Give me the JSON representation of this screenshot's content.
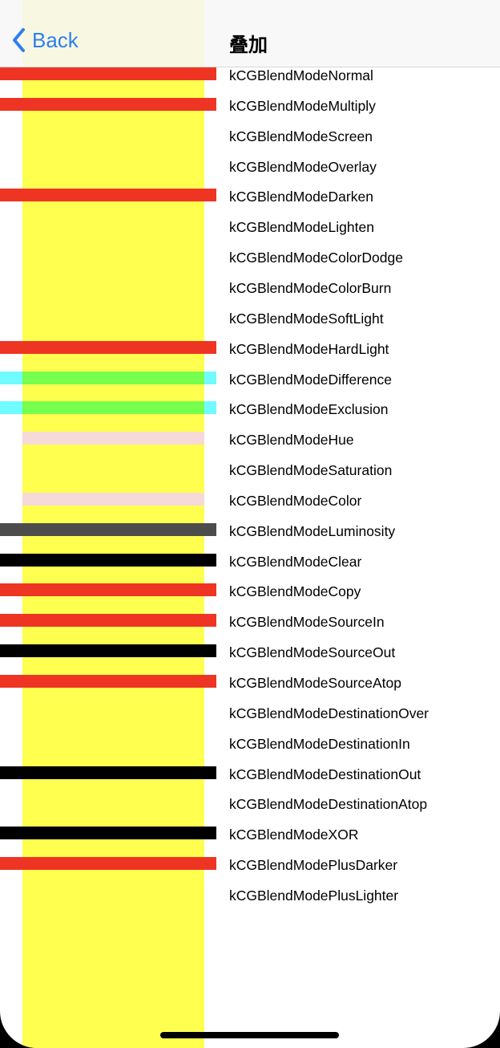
{
  "nav": {
    "back_label": "Back",
    "title": "叠加"
  },
  "colors": {
    "yellow": "#ffff4f",
    "red": "#ee3524",
    "cyan": "#6ffbff",
    "green": "#76ff4c",
    "pink": "#f6d9d9",
    "gray": "#4c4c4c",
    "black": "#000000",
    "accent": "#2f7ff0"
  },
  "rows": [
    {
      "label": "kCGBlendModeNormal",
      "bar": "red"
    },
    {
      "label": "kCGBlendModeMultiply",
      "bar": "red"
    },
    {
      "label": "kCGBlendModeScreen",
      "bar": "none"
    },
    {
      "label": "kCGBlendModeOverlay",
      "bar": "none"
    },
    {
      "label": "kCGBlendModeDarken",
      "bar": "red"
    },
    {
      "label": "kCGBlendModeLighten",
      "bar": "none"
    },
    {
      "label": "kCGBlendModeColorDodge",
      "bar": "none"
    },
    {
      "label": "kCGBlendModeColorBurn",
      "bar": "none"
    },
    {
      "label": "kCGBlendModeSoftLight",
      "bar": "none"
    },
    {
      "label": "kCGBlendModeHardLight",
      "bar": "red"
    },
    {
      "label": "kCGBlendModeDifference",
      "bar": "cyan-green"
    },
    {
      "label": "kCGBlendModeExclusion",
      "bar": "cyan-green"
    },
    {
      "label": "kCGBlendModeHue",
      "bar": "pink"
    },
    {
      "label": "kCGBlendModeSaturation",
      "bar": "none"
    },
    {
      "label": "kCGBlendModeColor",
      "bar": "pink"
    },
    {
      "label": "kCGBlendModeLuminosity",
      "bar": "gray"
    },
    {
      "label": "kCGBlendModeClear",
      "bar": "black"
    },
    {
      "label": "kCGBlendModeCopy",
      "bar": "red"
    },
    {
      "label": "kCGBlendModeSourceIn",
      "bar": "red"
    },
    {
      "label": "kCGBlendModeSourceOut",
      "bar": "black"
    },
    {
      "label": "kCGBlendModeSourceAtop",
      "bar": "red"
    },
    {
      "label": "kCGBlendModeDestinationOver",
      "bar": "none"
    },
    {
      "label": "kCGBlendModeDestinationIn",
      "bar": "none"
    },
    {
      "label": "kCGBlendModeDestinationOut",
      "bar": "black"
    },
    {
      "label": "kCGBlendModeDestinationAtop",
      "bar": "none"
    },
    {
      "label": " kCGBlendModeXOR",
      "bar": "black"
    },
    {
      "label": "kCGBlendModePlusDarker",
      "bar": "red"
    },
    {
      "label": "kCGBlendModePlusLighter",
      "bar": "none"
    }
  ]
}
